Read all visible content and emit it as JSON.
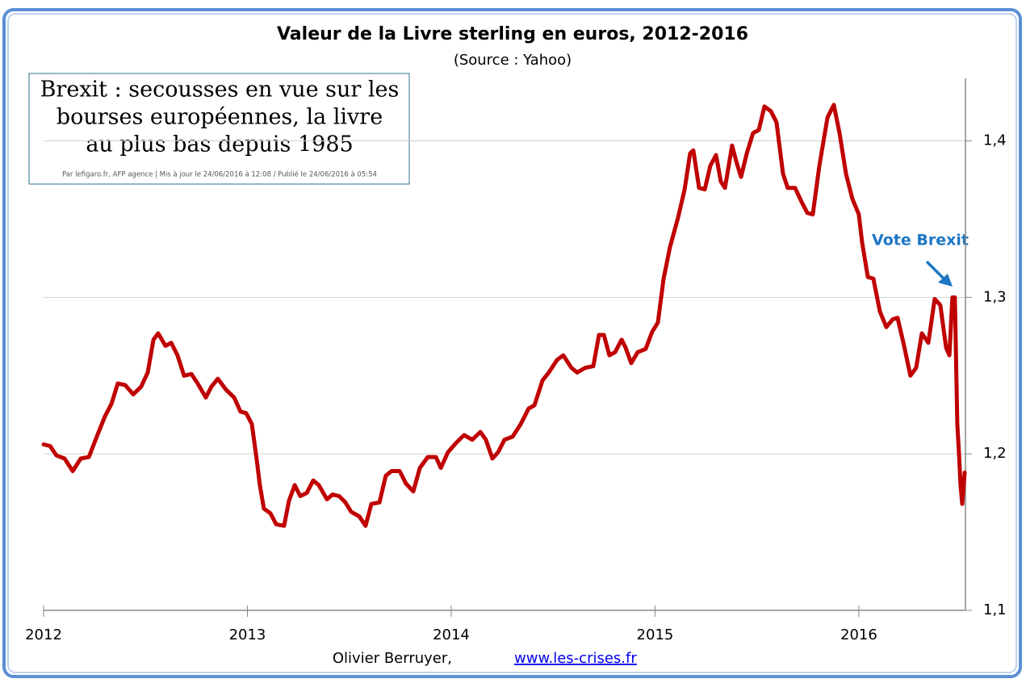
{
  "chart_data": {
    "type": "line",
    "title": "Valeur de la Livre sterling en euros, 2012-2016",
    "subtitle": "(Source : Yahoo)",
    "x": [
      2012.0,
      2012.032,
      2012.063,
      2012.103,
      2012.143,
      2012.182,
      2012.222,
      2012.261,
      2012.301,
      2012.333,
      2012.364,
      2012.4,
      2012.44,
      2012.479,
      2012.511,
      2012.539,
      2012.562,
      2012.598,
      2012.626,
      2012.657,
      2012.689,
      2012.725,
      2012.756,
      2012.796,
      2012.824,
      2012.855,
      2012.895,
      2012.935,
      2012.966,
      2012.994,
      2013.022,
      2013.046,
      2013.061,
      2013.081,
      2013.113,
      2013.141,
      2013.18,
      2013.204,
      2013.232,
      2013.259,
      2013.291,
      2013.323,
      2013.35,
      2013.39,
      2013.418,
      2013.45,
      2013.481,
      2013.509,
      2013.549,
      2013.58,
      2013.608,
      2013.648,
      2013.679,
      2013.707,
      2013.747,
      2013.778,
      2013.814,
      2013.846,
      2013.885,
      2013.925,
      2013.949,
      2013.984,
      2014.024,
      2014.063,
      2014.103,
      2014.143,
      2014.17,
      2014.202,
      2014.23,
      2014.261,
      2014.301,
      2014.341,
      2014.38,
      2014.408,
      2014.448,
      2014.479,
      2014.519,
      2014.55,
      2014.59,
      2014.618,
      2014.657,
      2014.697,
      2014.725,
      2014.749,
      2014.776,
      2014.804,
      2014.836,
      2014.855,
      2014.883,
      2014.915,
      2014.954,
      2014.986,
      2015.014,
      2015.042,
      2015.073,
      2015.113,
      2015.145,
      2015.172,
      2015.188,
      2015.216,
      2015.244,
      2015.271,
      2015.299,
      2015.323,
      2015.343,
      2015.378,
      2015.398,
      2015.422,
      2015.45,
      2015.481,
      2015.509,
      2015.537,
      2015.568,
      2015.596,
      2015.628,
      2015.651,
      2015.687,
      2015.719,
      2015.747,
      2015.774,
      2015.806,
      2015.846,
      2015.877,
      2015.905,
      2015.937,
      2015.968,
      2016.0,
      2016.016,
      2016.044,
      2016.071,
      2016.103,
      2016.135,
      2016.166,
      2016.19,
      2016.222,
      2016.253,
      2016.281,
      2016.309,
      2016.341,
      2016.372,
      2016.4,
      2016.428,
      2016.444,
      2016.459,
      2016.471,
      2016.483,
      2016.491,
      2016.499,
      2016.507,
      2016.519
    ],
    "series": [
      {
        "color": "#c00000",
        "values": [
          1.206,
          1.205,
          1.199,
          1.197,
          1.189,
          1.197,
          1.198,
          1.211,
          1.224,
          1.232,
          1.245,
          1.244,
          1.238,
          1.243,
          1.252,
          1.273,
          1.277,
          1.269,
          1.271,
          1.263,
          1.25,
          1.251,
          1.245,
          1.236,
          1.243,
          1.248,
          1.241,
          1.236,
          1.227,
          1.226,
          1.219,
          1.196,
          1.18,
          1.165,
          1.162,
          1.155,
          1.154,
          1.17,
          1.18,
          1.173,
          1.175,
          1.183,
          1.18,
          1.171,
          1.174,
          1.173,
          1.169,
          1.163,
          1.16,
          1.154,
          1.168,
          1.169,
          1.186,
          1.189,
          1.189,
          1.181,
          1.176,
          1.191,
          1.198,
          1.198,
          1.191,
          1.201,
          1.207,
          1.212,
          1.209,
          1.214,
          1.209,
          1.197,
          1.201,
          1.209,
          1.211,
          1.219,
          1.229,
          1.231,
          1.247,
          1.252,
          1.26,
          1.263,
          1.255,
          1.252,
          1.255,
          1.256,
          1.276,
          1.276,
          1.263,
          1.265,
          1.273,
          1.268,
          1.258,
          1.265,
          1.267,
          1.278,
          1.284,
          1.312,
          1.332,
          1.351,
          1.369,
          1.392,
          1.394,
          1.37,
          1.369,
          1.384,
          1.391,
          1.374,
          1.37,
          1.397,
          1.387,
          1.377,
          1.392,
          1.405,
          1.407,
          1.422,
          1.419,
          1.412,
          1.379,
          1.37,
          1.37,
          1.361,
          1.354,
          1.353,
          1.384,
          1.415,
          1.423,
          1.405,
          1.379,
          1.363,
          1.353,
          1.335,
          1.313,
          1.312,
          1.291,
          1.281,
          1.286,
          1.287,
          1.269,
          1.25,
          1.255,
          1.277,
          1.271,
          1.299,
          1.295,
          1.268,
          1.263,
          1.3,
          1.3,
          1.219,
          1.201,
          1.18,
          1.168,
          1.188
        ]
      }
    ],
    "xlim": [
      2012,
      2016.523
    ],
    "xticks": [
      2012,
      2013,
      2014,
      2015,
      2016
    ],
    "ylim": [
      1.1,
      1.44
    ],
    "yticks": [
      {
        "value": 1.1,
        "label": "1,1"
      },
      {
        "value": 1.2,
        "label": "1,2"
      },
      {
        "value": 1.3,
        "label": "1,3"
      },
      {
        "value": 1.4,
        "label": "1,4"
      }
    ],
    "grid": true,
    "annotations": [
      "Vote Brexit"
    ],
    "inset": {
      "headline": [
        "Brexit : secousses en vue sur les",
        "bourses européennes, la livre",
        "au plus bas depuis 1985"
      ],
      "byline": "Par  lefigaro.fr, AFP agence  |  Mis à jour le 24/06/2016 à 12:08  /  Publié le 24/06/2016 à 05:54"
    },
    "footer": {
      "author": "Olivier Berruyer,",
      "link": "www.les-crises.fr"
    }
  }
}
